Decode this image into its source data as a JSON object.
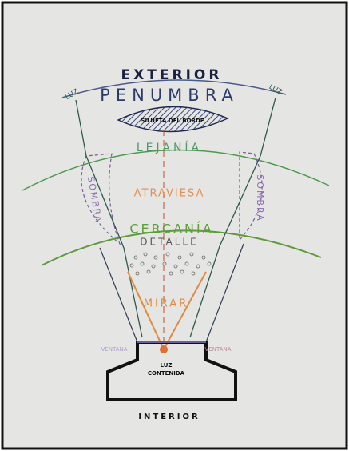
{
  "labels": {
    "exterior": "EXTERIOR",
    "penumbra": "PENUMBRA",
    "luz_left": "LUZ",
    "luz_right": "LUZ",
    "silueta": "SILUETA DEL BORDE",
    "lejania": "LEJANÍA",
    "sombra_left": "SOMBRA",
    "sombra_right": "SOMBRA",
    "atraviesa": "ATRAVIESA",
    "cercania": "CERCANÍA",
    "detalle": "DETALLE",
    "mirar": "MIRAR",
    "ventana_left": "VENTANA",
    "ventana_right": "VENTANA",
    "luz_contenida": [
      "LUZ",
      "CONTENIDA"
    ],
    "interior": "INTERIOR"
  }
}
